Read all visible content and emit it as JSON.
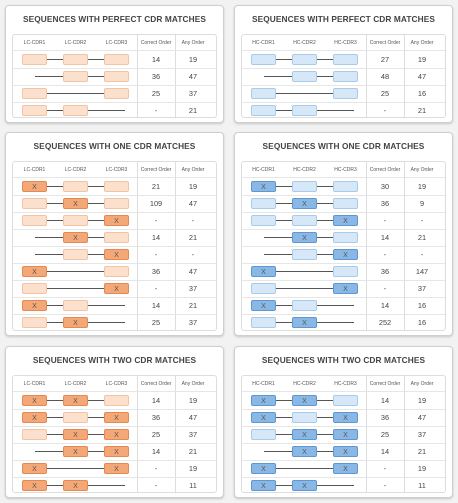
{
  "colors": {
    "lc_fill": "#fbe0cd",
    "lc_match": "#f5a877",
    "hc_fill": "#d6e8f8",
    "hc_match": "#8ab8e6",
    "connector": "#555555"
  },
  "panels": [
    {
      "title": "SEQUENCES WITH PERFECT CDR MATCHES",
      "chain": "LC",
      "headers": [
        "LC-CDR1",
        "LC-CDR2",
        "LC-CDR3",
        "Correct Order",
        "Any Order"
      ],
      "rows": [
        {
          "present": [
            true,
            true,
            true
          ],
          "match": [
            false,
            false,
            false
          ],
          "correct": "14",
          "any": "19"
        },
        {
          "present": [
            false,
            true,
            true
          ],
          "match": [
            false,
            false,
            false
          ],
          "correct": "36",
          "any": "47"
        },
        {
          "present": [
            true,
            false,
            true
          ],
          "match": [
            false,
            false,
            false
          ],
          "correct": "25",
          "any": "37"
        },
        {
          "present": [
            true,
            true,
            false
          ],
          "match": [
            false,
            false,
            false
          ],
          "correct": "-",
          "any": "21"
        }
      ]
    },
    {
      "title": "SEQUENCES WITH PERFECT CDR MATCHES",
      "chain": "HC",
      "headers": [
        "HC-CDR1",
        "HC-CDR2",
        "HC-CDR3",
        "Correct Order",
        "Any Order"
      ],
      "rows": [
        {
          "present": [
            true,
            true,
            true
          ],
          "match": [
            false,
            false,
            false
          ],
          "correct": "27",
          "any": "19"
        },
        {
          "present": [
            false,
            true,
            true
          ],
          "match": [
            false,
            false,
            false
          ],
          "correct": "48",
          "any": "47"
        },
        {
          "present": [
            true,
            false,
            true
          ],
          "match": [
            false,
            false,
            false
          ],
          "correct": "25",
          "any": "16"
        },
        {
          "present": [
            true,
            true,
            false
          ],
          "match": [
            false,
            false,
            false
          ],
          "correct": "-",
          "any": "21"
        }
      ]
    },
    {
      "title": "SEQUENCES WITH ONE CDR MATCHES",
      "chain": "LC",
      "headers": [
        "LC-CDR1",
        "LC-CDR2",
        "LC-CDR3",
        "Correct Order",
        "Any Order"
      ],
      "rows": [
        {
          "present": [
            true,
            true,
            true
          ],
          "match": [
            true,
            false,
            false
          ],
          "correct": "21",
          "any": "19"
        },
        {
          "present": [
            true,
            true,
            true
          ],
          "match": [
            false,
            true,
            false
          ],
          "correct": "109",
          "any": "47"
        },
        {
          "present": [
            true,
            true,
            true
          ],
          "match": [
            false,
            false,
            true
          ],
          "correct": "-",
          "any": "-"
        },
        {
          "present": [
            false,
            true,
            true
          ],
          "match": [
            false,
            true,
            false
          ],
          "correct": "14",
          "any": "21"
        },
        {
          "present": [
            false,
            true,
            true
          ],
          "match": [
            false,
            false,
            true
          ],
          "correct": "-",
          "any": "-"
        },
        {
          "present": [
            true,
            false,
            true
          ],
          "match": [
            true,
            false,
            false
          ],
          "correct": "36",
          "any": "47"
        },
        {
          "present": [
            true,
            false,
            true
          ],
          "match": [
            false,
            false,
            true
          ],
          "correct": "-",
          "any": "37"
        },
        {
          "present": [
            true,
            true,
            false
          ],
          "match": [
            true,
            false,
            false
          ],
          "correct": "14",
          "any": "21"
        },
        {
          "present": [
            true,
            true,
            false
          ],
          "match": [
            false,
            true,
            false
          ],
          "correct": "25",
          "any": "37"
        }
      ]
    },
    {
      "title": "SEQUENCES WITH ONE CDR MATCHES",
      "chain": "HC",
      "headers": [
        "HC-CDR1",
        "HC-CDR2",
        "HC-CDR3",
        "Correct Order",
        "Any Order"
      ],
      "rows": [
        {
          "present": [
            true,
            true,
            true
          ],
          "match": [
            true,
            false,
            false
          ],
          "correct": "30",
          "any": "19"
        },
        {
          "present": [
            true,
            true,
            true
          ],
          "match": [
            false,
            true,
            false
          ],
          "correct": "36",
          "any": "9"
        },
        {
          "present": [
            true,
            true,
            true
          ],
          "match": [
            false,
            false,
            true
          ],
          "correct": "-",
          "any": "-"
        },
        {
          "present": [
            false,
            true,
            true
          ],
          "match": [
            false,
            true,
            false
          ],
          "correct": "14",
          "any": "21"
        },
        {
          "present": [
            false,
            true,
            true
          ],
          "match": [
            false,
            false,
            true
          ],
          "correct": "-",
          "any": "-"
        },
        {
          "present": [
            true,
            false,
            true
          ],
          "match": [
            true,
            false,
            false
          ],
          "correct": "36",
          "any": "147"
        },
        {
          "present": [
            true,
            false,
            true
          ],
          "match": [
            false,
            false,
            true
          ],
          "correct": "-",
          "any": "37"
        },
        {
          "present": [
            true,
            true,
            false
          ],
          "match": [
            true,
            false,
            false
          ],
          "correct": "14",
          "any": "16"
        },
        {
          "present": [
            true,
            true,
            false
          ],
          "match": [
            false,
            true,
            false
          ],
          "correct": "252",
          "any": "16"
        }
      ]
    },
    {
      "title": "SEQUENCES WITH TWO CDR MATCHES",
      "chain": "LC",
      "headers": [
        "LC-CDR1",
        "LC-CDR2",
        "LC-CDR3",
        "Correct Order",
        "Any Order"
      ],
      "rows": [
        {
          "present": [
            true,
            true,
            true
          ],
          "match": [
            true,
            true,
            false
          ],
          "correct": "14",
          "any": "19"
        },
        {
          "present": [
            true,
            true,
            true
          ],
          "match": [
            true,
            false,
            true
          ],
          "correct": "36",
          "any": "47"
        },
        {
          "present": [
            true,
            true,
            true
          ],
          "match": [
            false,
            true,
            true
          ],
          "correct": "25",
          "any": "37"
        },
        {
          "present": [
            false,
            true,
            true
          ],
          "match": [
            false,
            true,
            true
          ],
          "correct": "14",
          "any": "21"
        },
        {
          "present": [
            true,
            false,
            true
          ],
          "match": [
            true,
            false,
            true
          ],
          "correct": "-",
          "any": "19"
        },
        {
          "present": [
            true,
            true,
            false
          ],
          "match": [
            true,
            true,
            false
          ],
          "correct": "-",
          "any": "11"
        }
      ]
    },
    {
      "title": "SEQUENCES WITH TWO CDR MATCHES",
      "chain": "HC",
      "headers": [
        "HC-CDR1",
        "HC-CDR2",
        "HC-CDR3",
        "Correct Order",
        "Any Order"
      ],
      "rows": [
        {
          "present": [
            true,
            true,
            true
          ],
          "match": [
            true,
            true,
            false
          ],
          "correct": "14",
          "any": "19"
        },
        {
          "present": [
            true,
            true,
            true
          ],
          "match": [
            true,
            false,
            true
          ],
          "correct": "36",
          "any": "47"
        },
        {
          "present": [
            true,
            true,
            true
          ],
          "match": [
            false,
            true,
            true
          ],
          "correct": "25",
          "any": "37"
        },
        {
          "present": [
            false,
            true,
            true
          ],
          "match": [
            false,
            true,
            true
          ],
          "correct": "14",
          "any": "21"
        },
        {
          "present": [
            true,
            false,
            true
          ],
          "match": [
            true,
            false,
            true
          ],
          "correct": "-",
          "any": "19"
        },
        {
          "present": [
            true,
            true,
            false
          ],
          "match": [
            true,
            true,
            false
          ],
          "correct": "-",
          "any": "11"
        }
      ]
    }
  ],
  "match_mark": "X"
}
